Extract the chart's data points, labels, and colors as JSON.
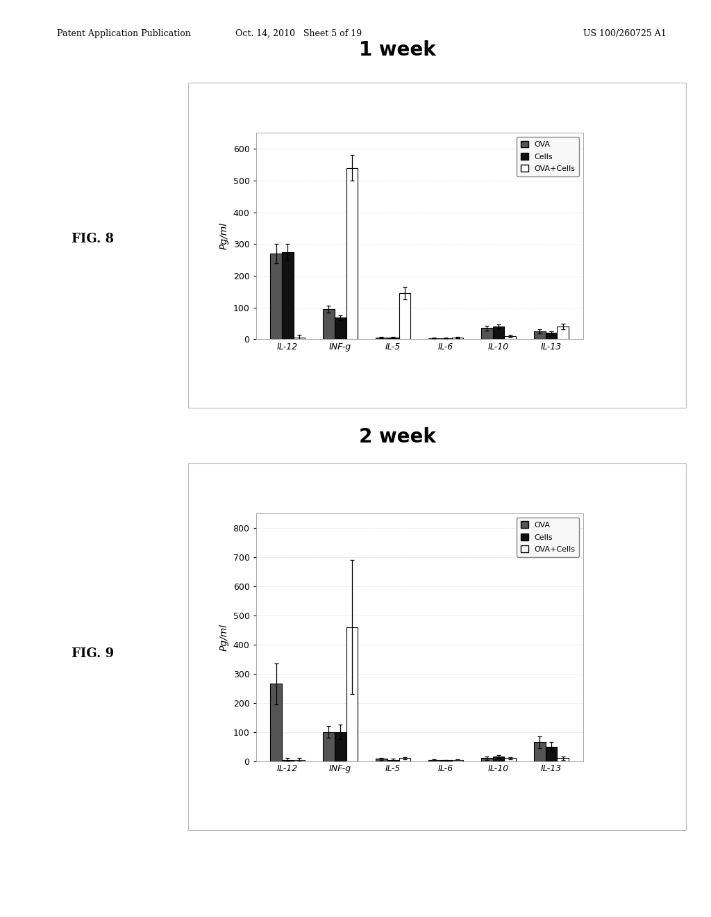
{
  "fig8": {
    "title": "1 week",
    "ylabel": "Pg/ml",
    "categories": [
      "IL-12",
      "INF-g",
      "IL-5",
      "IL-6",
      "IL-10",
      "IL-13"
    ],
    "series": {
      "OVA": [
        270,
        95,
        5,
        3,
        35,
        25
      ],
      "Cells": [
        275,
        68,
        5,
        3,
        40,
        20
      ],
      "OVA+Cells": [
        5,
        540,
        145,
        5,
        10,
        40
      ]
    },
    "errors": {
      "OVA": [
        30,
        10,
        3,
        2,
        8,
        6
      ],
      "Cells": [
        25,
        8,
        3,
        2,
        6,
        5
      ],
      "OVA+Cells": [
        10,
        40,
        20,
        3,
        3,
        8
      ]
    },
    "ylim": [
      0,
      650
    ],
    "yticks": [
      0,
      100,
      200,
      300,
      400,
      500,
      600
    ]
  },
  "fig9": {
    "title": "2 week",
    "ylabel": "Pg/ml",
    "categories": [
      "IL-12",
      "INF-g",
      "IL-5",
      "IL-6",
      "IL-10",
      "IL-13"
    ],
    "series": {
      "OVA": [
        265,
        100,
        8,
        5,
        10,
        65
      ],
      "Cells": [
        5,
        100,
        5,
        3,
        15,
        50
      ],
      "OVA+Cells": [
        5,
        460,
        10,
        5,
        10,
        10
      ]
    },
    "errors": {
      "OVA": [
        70,
        20,
        4,
        2,
        5,
        20
      ],
      "Cells": [
        5,
        25,
        3,
        2,
        5,
        15
      ],
      "OVA+Cells": [
        5,
        230,
        4,
        2,
        3,
        5
      ]
    },
    "ylim": [
      0,
      850
    ],
    "yticks": [
      0,
      100,
      200,
      300,
      400,
      500,
      600,
      700,
      800
    ]
  },
  "bar_colors": {
    "OVA": "#555555",
    "Cells": "#111111",
    "OVA+Cells": "#ffffff"
  },
  "bar_edge_colors": {
    "OVA": "#000000",
    "Cells": "#000000",
    "OVA+Cells": "#000000"
  },
  "legend_labels": [
    "OVA",
    "Cells",
    "OVA+Cells"
  ],
  "fig_label_8": "FIG. 8",
  "fig_label_9": "FIG. 9",
  "header_left": "Patent Application Publication",
  "header_mid": "Oct. 14, 2010  Sheet 5 of 19",
  "header_right": "US 100/260725 A1"
}
